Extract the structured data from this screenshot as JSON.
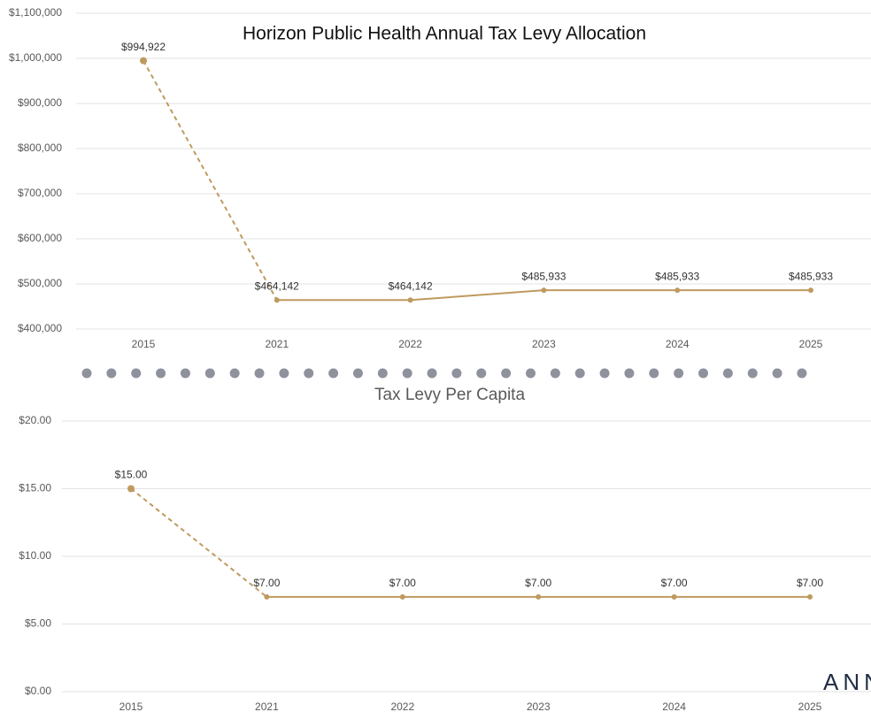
{
  "chart_data": [
    {
      "type": "line",
      "title": "Horizon Public Health Annual Tax Levy Allocation",
      "categories": [
        "2015",
        "2021",
        "2022",
        "2023",
        "2024",
        "2025"
      ],
      "series": [
        {
          "color": "#bf9a5f",
          "values": [
            994922,
            464142,
            464142,
            485933,
            485933,
            485933
          ],
          "value_labels": [
            "$994,922",
            "$464,142",
            "$464,142",
            "$485,933",
            "$485,933",
            "$485,933"
          ],
          "dashed_segments": [
            0
          ]
        }
      ],
      "ylim": [
        400000,
        1100000
      ],
      "yticks": [
        {
          "value": 400000,
          "label": "$400,000"
        },
        {
          "value": 500000,
          "label": "$500,000"
        },
        {
          "value": 600000,
          "label": "$600,000"
        },
        {
          "value": 700000,
          "label": "$700,000"
        },
        {
          "value": 800000,
          "label": "$800,000"
        },
        {
          "value": 900000,
          "label": "$900,000"
        },
        {
          "value": 1000000,
          "label": "$1,000,000"
        },
        {
          "value": 1100000,
          "label": "$1,100,000"
        }
      ],
      "grid": true
    },
    {
      "type": "line",
      "title": "Tax Levy Per Capita",
      "categories": [
        "2015",
        "2021",
        "2022",
        "2023",
        "2024",
        "2025"
      ],
      "series": [
        {
          "color": "#bf9a5f",
          "values": [
            15,
            7,
            7,
            7,
            7,
            7
          ],
          "value_labels": [
            "$15.00",
            "$7.00",
            "$7.00",
            "$7.00",
            "$7.00",
            "$7.00"
          ],
          "dashed_segments": [
            0
          ]
        }
      ],
      "ylim": [
        0,
        20
      ],
      "yticks": [
        {
          "value": 0,
          "label": "$0.00"
        },
        {
          "value": 5,
          "label": "$5.00"
        },
        {
          "value": 10,
          "label": "$10.00"
        },
        {
          "value": 15,
          "label": "$15.00"
        },
        {
          "value": 20,
          "label": "$20.00"
        }
      ],
      "grid": true
    }
  ],
  "watermark": "ANN"
}
